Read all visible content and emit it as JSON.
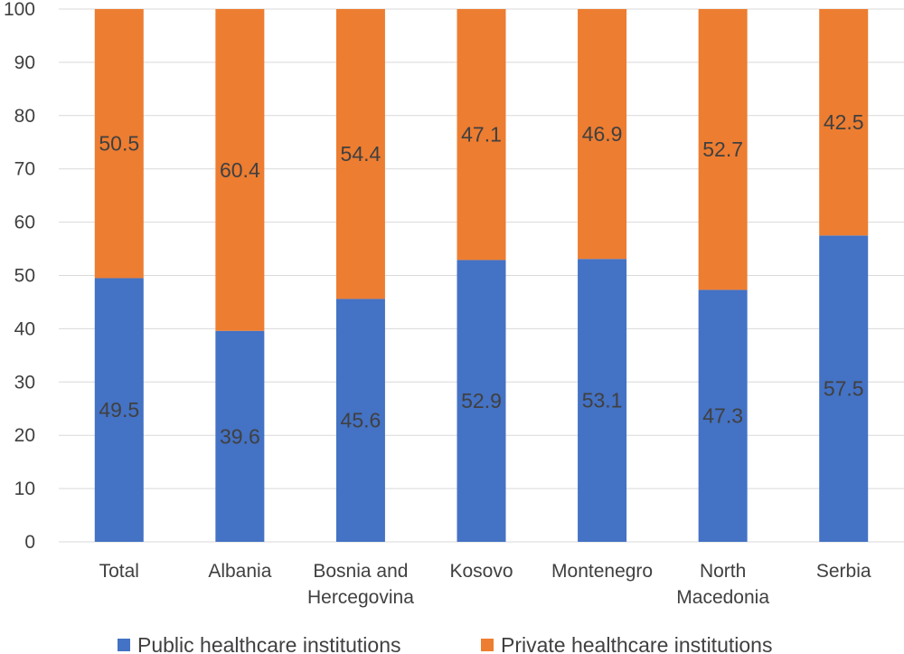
{
  "chart_data": {
    "type": "bar",
    "stacked": true,
    "categories": [
      [
        "Total"
      ],
      [
        "Albania"
      ],
      [
        "Bosnia and",
        "Hercegovina"
      ],
      [
        "Kosovo"
      ],
      [
        "Montenegro"
      ],
      [
        "North",
        "Macedonia"
      ],
      [
        "Serbia"
      ]
    ],
    "series": [
      {
        "name": "Public healthcare institutions",
        "color": "#4472c4",
        "values": [
          49.5,
          39.6,
          45.6,
          52.9,
          53.1,
          47.3,
          57.5
        ]
      },
      {
        "name": "Private healthcare institutions",
        "color": "#ed7d31",
        "values": [
          50.5,
          60.4,
          54.4,
          47.1,
          46.9,
          52.7,
          42.5
        ]
      }
    ],
    "ylim": [
      0,
      100
    ],
    "yticks": [
      0,
      10,
      20,
      30,
      40,
      50,
      60,
      70,
      80,
      90,
      100
    ],
    "grid": true,
    "legend": "bottom",
    "title": "",
    "xlabel": "",
    "ylabel": ""
  }
}
